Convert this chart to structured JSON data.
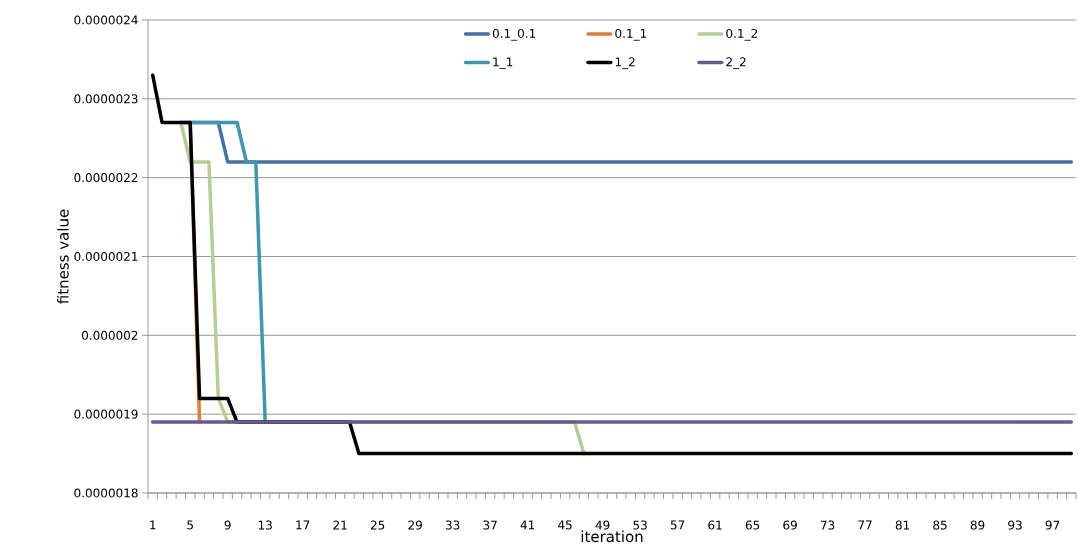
{
  "chart_data": {
    "type": "line",
    "xlabel": "iteration",
    "ylabel": "fitness value",
    "categories": [
      "1",
      null,
      null,
      null,
      "5",
      null,
      null,
      null,
      "9",
      null,
      null,
      null,
      "13",
      null,
      null,
      null,
      "17",
      null,
      null,
      null,
      "21",
      null,
      null,
      null,
      "25",
      null,
      null,
      null,
      "29",
      null,
      null,
      null,
      "33",
      null,
      null,
      null,
      "37",
      null,
      null,
      null,
      "41",
      null,
      null,
      null,
      "45",
      null,
      null,
      null,
      "49",
      null,
      null,
      null,
      "53",
      null,
      null,
      null,
      "57",
      null,
      null,
      null,
      "61",
      null,
      null,
      null,
      "65",
      null,
      null,
      null,
      "69",
      null,
      null,
      null,
      "73",
      null,
      null,
      null,
      "77",
      null,
      null,
      null,
      "81",
      null,
      null,
      null,
      "85",
      null,
      null,
      null,
      "89",
      null,
      null,
      null,
      "93",
      null,
      null,
      null,
      "97",
      null,
      null
    ],
    "ylim": [
      1.8e-06,
      2.4e-06
    ],
    "yticks": [
      {
        "value": 1.8e-06,
        "label": "0.0000018"
      },
      {
        "value": 1.9e-06,
        "label": "0.0000019"
      },
      {
        "value": 2e-06,
        "label": "0.000002"
      },
      {
        "value": 2.1e-06,
        "label": "0.0000021"
      },
      {
        "value": 2.2e-06,
        "label": "0.0000022"
      },
      {
        "value": 2.3e-06,
        "label": "0.0000023"
      },
      {
        "value": 2.4e-06,
        "label": "0.0000024"
      }
    ],
    "grid": "y",
    "legend": "top",
    "marker": "none",
    "line_style": "solid",
    "series": [
      {
        "name": "0.1_0.1",
        "color": "#4470a8",
        "values": [
          null,
          null,
          null,
          2.27e-06,
          2.27e-06,
          2.27e-06,
          2.27e-06,
          2.27e-06,
          2.22e-06,
          2.22e-06,
          2.22e-06,
          2.22e-06,
          2.22e-06,
          2.22e-06,
          2.22e-06,
          2.22e-06,
          2.22e-06,
          2.22e-06,
          2.22e-06,
          2.22e-06,
          2.22e-06,
          2.22e-06,
          2.22e-06,
          2.22e-06,
          2.22e-06,
          2.22e-06,
          2.22e-06,
          2.22e-06,
          2.22e-06,
          2.22e-06,
          2.22e-06,
          2.22e-06,
          2.22e-06,
          2.22e-06,
          2.22e-06,
          2.22e-06,
          2.22e-06,
          2.22e-06,
          2.22e-06,
          2.22e-06,
          2.22e-06,
          2.22e-06,
          2.22e-06,
          2.22e-06,
          2.22e-06,
          2.22e-06,
          2.22e-06,
          2.22e-06,
          2.22e-06,
          2.22e-06,
          2.22e-06,
          2.22e-06,
          2.22e-06,
          2.22e-06,
          2.22e-06,
          2.22e-06,
          2.22e-06,
          2.22e-06,
          2.22e-06,
          2.22e-06,
          2.22e-06,
          2.22e-06,
          2.22e-06,
          2.22e-06,
          2.22e-06,
          2.22e-06,
          2.22e-06,
          2.22e-06,
          2.22e-06,
          2.22e-06,
          2.22e-06,
          2.22e-06,
          2.22e-06,
          2.22e-06,
          2.22e-06,
          2.22e-06,
          2.22e-06,
          2.22e-06,
          2.22e-06,
          2.22e-06,
          2.22e-06,
          2.22e-06,
          2.22e-06,
          2.22e-06,
          2.22e-06,
          2.22e-06,
          2.22e-06,
          2.22e-06,
          2.22e-06,
          2.22e-06,
          2.22e-06,
          2.22e-06,
          2.22e-06,
          2.22e-06,
          2.22e-06,
          2.22e-06,
          2.22e-06,
          2.22e-06,
          2.22e-06
        ]
      },
      {
        "name": "0.1_1",
        "color": "#e07f33",
        "values": [
          null,
          null,
          null,
          null,
          2.27e-06,
          1.89e-06,
          null,
          null,
          null,
          null,
          null,
          null,
          null,
          null,
          null,
          null,
          null,
          null,
          null,
          null,
          null,
          null,
          null,
          null,
          null,
          null,
          null,
          null,
          null,
          null,
          null,
          null,
          null,
          null,
          null,
          null,
          null,
          null,
          null,
          null,
          null,
          null,
          null,
          null,
          null,
          null,
          null,
          null,
          null,
          null,
          null,
          null,
          null,
          null,
          null,
          null,
          null,
          null,
          null,
          null,
          null,
          null,
          null,
          null,
          null,
          null,
          null,
          null,
          null,
          null,
          null,
          null,
          null,
          null,
          null,
          null,
          null,
          null,
          null,
          null,
          null,
          null,
          null,
          null,
          null,
          null,
          null,
          null,
          null,
          null,
          null,
          null,
          null,
          null,
          null,
          null,
          null,
          null,
          null
        ]
      },
      {
        "name": "0.1_2",
        "color": "#b5cf93",
        "values": [
          null,
          null,
          null,
          2.27e-06,
          2.22e-06,
          2.22e-06,
          2.22e-06,
          1.92e-06,
          1.89e-06,
          null,
          null,
          null,
          null,
          null,
          null,
          null,
          null,
          null,
          null,
          null,
          null,
          null,
          null,
          null,
          null,
          null,
          null,
          null,
          null,
          null,
          null,
          null,
          null,
          null,
          null,
          null,
          null,
          null,
          null,
          null,
          null,
          null,
          null,
          null,
          null,
          1.89e-06,
          1.85e-06,
          null,
          null,
          null,
          null,
          null,
          null,
          null,
          null,
          null,
          null,
          null,
          null,
          null,
          null,
          null,
          null,
          null,
          null,
          null,
          null,
          null,
          null,
          null,
          null,
          null,
          null,
          null,
          null,
          null,
          null,
          null,
          null,
          null,
          null,
          null,
          null,
          null,
          null,
          null,
          null,
          null,
          null,
          null,
          null,
          null,
          null,
          null,
          null,
          null,
          null,
          null,
          null
        ]
      },
      {
        "name": "1_1",
        "color": "#3c98b0",
        "values": [
          null,
          null,
          null,
          null,
          2.27e-06,
          2.27e-06,
          2.27e-06,
          2.27e-06,
          2.27e-06,
          2.27e-06,
          2.22e-06,
          2.22e-06,
          1.89e-06,
          null,
          null,
          null,
          null,
          null,
          null,
          null,
          null,
          null,
          null,
          null,
          null,
          null,
          null,
          null,
          null,
          null,
          null,
          null,
          null,
          null,
          null,
          null,
          null,
          null,
          null,
          null,
          null,
          null,
          null,
          null,
          null,
          null,
          null,
          null,
          null,
          null,
          null,
          null,
          null,
          null,
          null,
          null,
          null,
          null,
          null,
          null,
          null,
          null,
          null,
          null,
          null,
          null,
          null,
          null,
          null,
          null,
          null,
          null,
          null,
          null,
          null,
          null,
          null,
          null,
          null,
          null,
          null,
          null,
          null,
          null,
          null,
          null,
          null,
          null,
          null,
          null,
          null,
          null,
          null,
          null,
          null,
          null,
          null,
          null,
          null
        ]
      },
      {
        "name": "1_2",
        "color": "#000000",
        "values": [
          2.33e-06,
          2.27e-06,
          2.27e-06,
          2.27e-06,
          2.27e-06,
          1.92e-06,
          1.92e-06,
          1.92e-06,
          1.92e-06,
          1.89e-06,
          null,
          null,
          null,
          null,
          null,
          null,
          null,
          null,
          null,
          null,
          null,
          1.89e-06,
          1.85e-06,
          1.85e-06,
          1.85e-06,
          1.85e-06,
          1.85e-06,
          1.85e-06,
          1.85e-06,
          1.85e-06,
          1.85e-06,
          1.85e-06,
          1.85e-06,
          1.85e-06,
          1.85e-06,
          1.85e-06,
          1.85e-06,
          1.85e-06,
          1.85e-06,
          1.85e-06,
          1.85e-06,
          1.85e-06,
          1.85e-06,
          1.85e-06,
          1.85e-06,
          1.85e-06,
          1.85e-06,
          1.85e-06,
          1.85e-06,
          1.85e-06,
          1.85e-06,
          1.85e-06,
          1.85e-06,
          1.85e-06,
          1.85e-06,
          1.85e-06,
          1.85e-06,
          1.85e-06,
          1.85e-06,
          1.85e-06,
          1.85e-06,
          1.85e-06,
          1.85e-06,
          1.85e-06,
          1.85e-06,
          1.85e-06,
          1.85e-06,
          1.85e-06,
          1.85e-06,
          1.85e-06,
          1.85e-06,
          1.85e-06,
          1.85e-06,
          1.85e-06,
          1.85e-06,
          1.85e-06,
          1.85e-06,
          1.85e-06,
          1.85e-06,
          1.85e-06,
          1.85e-06,
          1.85e-06,
          1.85e-06,
          1.85e-06,
          1.85e-06,
          1.85e-06,
          1.85e-06,
          1.85e-06,
          1.85e-06,
          1.85e-06,
          1.85e-06,
          1.85e-06,
          1.85e-06,
          1.85e-06,
          1.85e-06,
          1.85e-06,
          1.85e-06,
          1.85e-06,
          1.85e-06
        ]
      },
      {
        "name": "2_2",
        "color": "#6b5690",
        "values": [
          1.89e-06,
          1.89e-06,
          1.89e-06,
          1.89e-06,
          1.89e-06,
          1.89e-06,
          1.89e-06,
          1.89e-06,
          1.89e-06,
          1.89e-06,
          1.89e-06,
          1.89e-06,
          1.89e-06,
          1.89e-06,
          1.89e-06,
          1.89e-06,
          1.89e-06,
          1.89e-06,
          1.89e-06,
          1.89e-06,
          1.89e-06,
          1.89e-06,
          1.89e-06,
          1.89e-06,
          1.89e-06,
          1.89e-06,
          1.89e-06,
          1.89e-06,
          1.89e-06,
          1.89e-06,
          1.89e-06,
          1.89e-06,
          1.89e-06,
          1.89e-06,
          1.89e-06,
          1.89e-06,
          1.89e-06,
          1.89e-06,
          1.89e-06,
          1.89e-06,
          1.89e-06,
          1.89e-06,
          1.89e-06,
          1.89e-06,
          1.89e-06,
          1.89e-06,
          1.89e-06,
          1.89e-06,
          1.89e-06,
          1.89e-06,
          1.89e-06,
          1.89e-06,
          1.89e-06,
          1.89e-06,
          1.89e-06,
          1.89e-06,
          1.89e-06,
          1.89e-06,
          1.89e-06,
          1.89e-06,
          1.89e-06,
          1.89e-06,
          1.89e-06,
          1.89e-06,
          1.89e-06,
          1.89e-06,
          1.89e-06,
          1.89e-06,
          1.89e-06,
          1.89e-06,
          1.89e-06,
          1.89e-06,
          1.89e-06,
          1.89e-06,
          1.89e-06,
          1.89e-06,
          1.89e-06,
          1.89e-06,
          1.89e-06,
          1.89e-06,
          1.89e-06,
          1.89e-06,
          1.89e-06,
          1.89e-06,
          1.89e-06,
          1.89e-06,
          1.89e-06,
          1.89e-06,
          1.89e-06,
          1.89e-06,
          1.89e-06,
          1.89e-06,
          1.89e-06,
          1.89e-06,
          1.89e-06,
          1.89e-06,
          1.89e-06,
          1.89e-06,
          1.89e-06
        ]
      }
    ]
  }
}
